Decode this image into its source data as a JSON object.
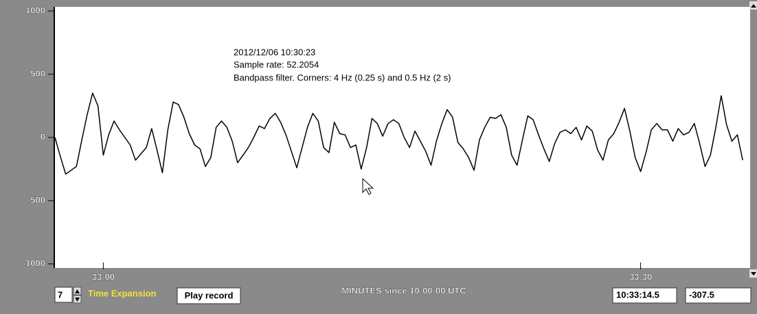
{
  "chart_data": {
    "type": "line",
    "annotations": [
      "2012/12/06 10:30:23",
      "Sample rate: 52.2054",
      "Bandpass filter. Corners: 4 Hz (0.25 s) and 0.5 Hz (2 s)"
    ],
    "xlabel": "MINUTES since 10:00:00 UTC",
    "color": "#000000",
    "xlim": [
      32.955,
      33.6
    ],
    "xticks": [
      {
        "value": 33,
        "label": "33:00"
      },
      {
        "value": 33.5,
        "label": "33:30"
      }
    ],
    "ylim": [
      -1000,
      1000
    ],
    "yticks": [
      -1000,
      -500,
      0,
      500,
      1000
    ],
    "x": [
      32.955,
      32.96,
      32.965,
      32.97,
      32.975,
      32.98,
      32.985,
      32.99,
      32.995,
      33.0,
      33.005,
      33.01,
      33.015,
      33.02,
      33.025,
      33.03,
      33.035,
      33.04,
      33.045,
      33.05,
      33.055,
      33.06,
      33.065,
      33.07,
      33.075,
      33.08,
      33.085,
      33.09,
      33.095,
      33.1,
      33.105,
      33.11,
      33.115,
      33.12,
      33.125,
      33.13,
      33.135,
      33.14,
      33.145,
      33.15,
      33.155,
      33.16,
      33.165,
      33.17,
      33.175,
      33.18,
      33.185,
      33.19,
      33.195,
      33.2,
      33.205,
      33.21,
      33.215,
      33.22,
      33.225,
      33.23,
      33.235,
      33.24,
      33.245,
      33.25,
      33.255,
      33.26,
      33.265,
      33.27,
      33.275,
      33.28,
      33.285,
      33.29,
      33.295,
      33.3,
      33.305,
      33.31,
      33.315,
      33.32,
      33.325,
      33.33,
      33.335,
      33.34,
      33.345,
      33.35,
      33.355,
      33.36,
      33.365,
      33.37,
      33.375,
      33.38,
      33.385,
      33.39,
      33.395,
      33.4,
      33.405,
      33.41,
      33.415,
      33.42,
      33.425,
      33.43,
      33.435,
      33.44,
      33.445,
      33.45,
      33.455,
      33.46,
      33.465,
      33.47,
      33.475,
      33.48,
      33.485,
      33.49,
      33.495,
      33.5,
      33.505,
      33.51,
      33.515,
      33.52,
      33.525,
      33.53,
      33.535,
      33.54,
      33.545,
      33.55,
      33.555,
      33.56,
      33.565,
      33.57,
      33.575,
      33.58,
      33.585,
      33.59,
      33.595
    ],
    "values": [
      0,
      -150,
      -290,
      -260,
      -230,
      -20,
      180,
      350,
      250,
      -140,
      20,
      130,
      60,
      0,
      -60,
      -180,
      -130,
      -80,
      70,
      -100,
      -280,
      60,
      280,
      260,
      160,
      30,
      -60,
      -90,
      -230,
      -160,
      80,
      130,
      80,
      -30,
      -200,
      -140,
      -80,
      0,
      90,
      70,
      150,
      190,
      120,
      20,
      -110,
      -240,
      -80,
      80,
      190,
      130,
      -80,
      -120,
      120,
      30,
      20,
      -80,
      -60,
      -250,
      -80,
      150,
      110,
      10,
      110,
      140,
      110,
      0,
      -80,
      50,
      -30,
      -110,
      -220,
      -30,
      110,
      220,
      160,
      -40,
      -90,
      -160,
      -260,
      -20,
      80,
      160,
      150,
      180,
      80,
      -140,
      -220,
      -20,
      170,
      140,
      20,
      -90,
      -190,
      -50,
      40,
      60,
      30,
      80,
      -20,
      90,
      50,
      -100,
      -180,
      -20,
      30,
      120,
      230,
      50,
      -160,
      -270,
      -120,
      60,
      110,
      60,
      60,
      -30,
      70,
      20,
      40,
      110,
      -50,
      -230,
      -140,
      80,
      330,
      100,
      -30,
      20,
      -180
    ]
  },
  "controls": {
    "expansion": 7,
    "expansion_label": "Time Expansion",
    "play_button": "Play record",
    "cursor_time": "10:33:14.5",
    "cursor_value": -307.5
  }
}
